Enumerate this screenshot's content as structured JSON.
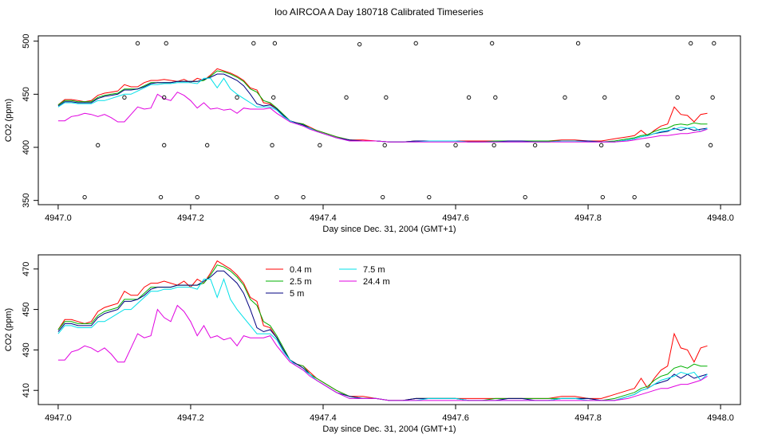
{
  "title": "loo AIRCOA A  Day 180718  Calibrated Timeseries",
  "chart_data": [
    {
      "type": "scatter",
      "xlabel": "Day since Dec. 31, 2004 (GMT+1)",
      "ylabel": "CO2 (ppm)",
      "xlim": [
        4946.97,
        4948.03
      ],
      "ylim": [
        346,
        505
      ],
      "xticks": [
        "4947.0",
        "4947.2",
        "4947.4",
        "4947.6",
        "4947.8",
        "4948.0"
      ],
      "yticks": [
        "350",
        "400",
        "450",
        "500"
      ],
      "points": {
        "x": [
          4947.04,
          4947.06,
          4947.1,
          4947.12,
          4947.155,
          4947.16,
          4947.16,
          4947.163,
          4947.21,
          4947.225,
          4947.27,
          4947.295,
          4947.323,
          4947.325,
          4947.327,
          4947.33,
          4947.37,
          4947.395,
          4947.435,
          4947.455,
          4947.49,
          4947.493,
          4947.495,
          4947.54,
          4947.56,
          4947.6,
          4947.62,
          4947.655,
          4947.658,
          4947.66,
          4947.705,
          4947.72,
          4947.765,
          4947.785,
          4947.82,
          4947.822,
          4947.825,
          4947.87,
          4947.89,
          4947.935,
          4947.955,
          4947.985,
          4947.988,
          4947.99
        ],
        "y": [
          353,
          402,
          447,
          498,
          353,
          402,
          447,
          498,
          353,
          402,
          447,
          498,
          402,
          447,
          498,
          353,
          353,
          402,
          447,
          497,
          353,
          402,
          447,
          498,
          353,
          402,
          447,
          498,
          402,
          447,
          353,
          402,
          447,
          498,
          402,
          353,
          447,
          353,
          402,
          447,
          498,
          402,
          447,
          498
        ]
      },
      "series": [
        {
          "name": "0.4 m",
          "color": "#ff0000",
          "x": [
            4947.0,
            4947.01,
            4947.02,
            4947.03,
            4947.04,
            4947.05,
            4947.06,
            4947.07,
            4947.08,
            4947.09,
            4947.1,
            4947.11,
            4947.12,
            4947.13,
            4947.14,
            4947.15,
            4947.16,
            4947.17,
            4947.18,
            4947.19,
            4947.2,
            4947.21,
            4947.22,
            4947.23,
            4947.24,
            4947.25,
            4947.26,
            4947.27,
            4947.28,
            4947.29,
            4947.3,
            4947.31,
            4947.32,
            4947.33,
            4947.34,
            4947.35,
            4947.36,
            4947.37,
            4947.38,
            4947.39,
            4947.4,
            4947.42,
            4947.44,
            4947.46,
            4947.48,
            4947.5,
            4947.52,
            4947.54,
            4947.56,
            4947.58,
            4947.6,
            4947.62,
            4947.64,
            4947.66,
            4947.68,
            4947.7,
            4947.72,
            4947.74,
            4947.76,
            4947.78,
            4947.8,
            4947.82,
            4947.84,
            4947.86,
            4947.87,
            4947.88,
            4947.89,
            4947.9,
            4947.91,
            4947.92,
            4947.93,
            4947.94,
            4947.95,
            4947.96,
            4947.97,
            4947.98
          ],
          "y": [
            440,
            445,
            445,
            444,
            443,
            444,
            449,
            451,
            452,
            453,
            459,
            457,
            457,
            461,
            463,
            463,
            464,
            463,
            462,
            464,
            461,
            465,
            463,
            468,
            474,
            472,
            470,
            467,
            463,
            456,
            454,
            442,
            441,
            436,
            430,
            425,
            423,
            422,
            419,
            416,
            414,
            410,
            407,
            407,
            406,
            405,
            405,
            406,
            406,
            406,
            406,
            406,
            406,
            406,
            406,
            406,
            406,
            406,
            407,
            407,
            406,
            406,
            408,
            410,
            411,
            416,
            411,
            416,
            420,
            422,
            438,
            431,
            430,
            424,
            431,
            432
          ]
        },
        {
          "name": "2.5 m",
          "color": "#00b000",
          "x": [
            4947.0,
            4947.01,
            4947.02,
            4947.03,
            4947.04,
            4947.05,
            4947.06,
            4947.07,
            4947.08,
            4947.09,
            4947.1,
            4947.11,
            4947.12,
            4947.13,
            4947.14,
            4947.15,
            4947.16,
            4947.17,
            4947.18,
            4947.19,
            4947.2,
            4947.21,
            4947.22,
            4947.23,
            4947.24,
            4947.25,
            4947.26,
            4947.27,
            4947.28,
            4947.29,
            4947.3,
            4947.31,
            4947.32,
            4947.33,
            4947.34,
            4947.35,
            4947.36,
            4947.37,
            4947.38,
            4947.39,
            4947.4,
            4947.42,
            4947.44,
            4947.46,
            4947.48,
            4947.5,
            4947.52,
            4947.54,
            4947.56,
            4947.58,
            4947.6,
            4947.62,
            4947.64,
            4947.66,
            4947.68,
            4947.7,
            4947.72,
            4947.74,
            4947.76,
            4947.78,
            4947.8,
            4947.82,
            4947.84,
            4947.86,
            4947.87,
            4947.88,
            4947.89,
            4947.9,
            4947.91,
            4947.92,
            4947.93,
            4947.94,
            4947.95,
            4947.96,
            4947.97,
            4947.98
          ],
          "y": [
            440,
            444,
            444,
            443,
            443,
            443,
            447,
            449,
            450,
            451,
            455,
            455,
            455,
            458,
            461,
            461,
            461,
            461,
            462,
            462,
            462,
            462,
            463,
            467,
            472,
            471,
            469,
            466,
            462,
            455,
            452,
            444,
            442,
            437,
            431,
            425,
            423,
            422,
            418,
            416,
            414,
            410,
            407,
            406,
            406,
            405,
            405,
            406,
            406,
            406,
            406,
            405,
            405,
            406,
            406,
            406,
            406,
            406,
            406,
            406,
            406,
            405,
            406,
            408,
            409,
            411,
            412,
            415,
            417,
            418,
            421,
            422,
            421,
            423,
            422,
            422
          ]
        },
        {
          "name": "5 m",
          "color": "#000080",
          "x": [
            4947.0,
            4947.01,
            4947.02,
            4947.03,
            4947.04,
            4947.05,
            4947.06,
            4947.07,
            4947.08,
            4947.09,
            4947.1,
            4947.11,
            4947.12,
            4947.13,
            4947.14,
            4947.15,
            4947.16,
            4947.17,
            4947.18,
            4947.19,
            4947.2,
            4947.21,
            4947.22,
            4947.23,
            4947.24,
            4947.25,
            4947.26,
            4947.27,
            4947.28,
            4947.29,
            4947.3,
            4947.31,
            4947.32,
            4947.33,
            4947.34,
            4947.35,
            4947.36,
            4947.37,
            4947.38,
            4947.39,
            4947.4,
            4947.42,
            4947.44,
            4947.46,
            4947.48,
            4947.5,
            4947.52,
            4947.54,
            4947.56,
            4947.58,
            4947.6,
            4947.62,
            4947.64,
            4947.66,
            4947.68,
            4947.7,
            4947.72,
            4947.74,
            4947.76,
            4947.78,
            4947.8,
            4947.82,
            4947.84,
            4947.86,
            4947.87,
            4947.88,
            4947.89,
            4947.9,
            4947.91,
            4947.92,
            4947.93,
            4947.94,
            4947.95,
            4947.96,
            4947.97,
            4947.98
          ],
          "y": [
            439,
            443,
            443,
            442,
            442,
            442,
            446,
            448,
            449,
            450,
            454,
            454,
            455,
            457,
            460,
            461,
            461,
            461,
            462,
            462,
            462,
            462,
            464,
            466,
            469,
            469,
            466,
            463,
            458,
            450,
            441,
            439,
            440,
            436,
            430,
            425,
            423,
            421,
            418,
            415,
            413,
            409,
            407,
            406,
            406,
            405,
            405,
            406,
            406,
            406,
            406,
            405,
            405,
            405,
            406,
            406,
            405,
            405,
            406,
            406,
            406,
            405,
            405,
            407,
            408,
            410,
            411,
            413,
            414,
            415,
            418,
            416,
            418,
            416,
            417,
            418
          ]
        },
        {
          "name": "7.5 m",
          "color": "#00e0e8",
          "x": [
            4947.0,
            4947.01,
            4947.02,
            4947.03,
            4947.04,
            4947.05,
            4947.06,
            4947.07,
            4947.08,
            4947.09,
            4947.1,
            4947.11,
            4947.12,
            4947.13,
            4947.14,
            4947.15,
            4947.16,
            4947.17,
            4947.18,
            4947.19,
            4947.2,
            4947.21,
            4947.22,
            4947.23,
            4947.24,
            4947.25,
            4947.26,
            4947.27,
            4947.28,
            4947.29,
            4947.3,
            4947.31,
            4947.32,
            4947.33,
            4947.34,
            4947.35,
            4947.36,
            4947.37,
            4947.38,
            4947.39,
            4947.4,
            4947.42,
            4947.44,
            4947.46,
            4947.48,
            4947.5,
            4947.52,
            4947.54,
            4947.56,
            4947.58,
            4947.6,
            4947.62,
            4947.64,
            4947.66,
            4947.68,
            4947.7,
            4947.72,
            4947.74,
            4947.76,
            4947.78,
            4947.8,
            4947.82,
            4947.84,
            4947.86,
            4947.87,
            4947.88,
            4947.89,
            4947.9,
            4947.91,
            4947.92,
            4947.93,
            4947.94,
            4947.95,
            4947.96,
            4947.97,
            4947.98
          ],
          "y": [
            438,
            442,
            442,
            441,
            441,
            441,
            444,
            444,
            446,
            448,
            450,
            450,
            453,
            456,
            459,
            459,
            460,
            460,
            461,
            461,
            461,
            460,
            465,
            465,
            456,
            465,
            455,
            450,
            446,
            442,
            438,
            438,
            438,
            435,
            429,
            425,
            422,
            420,
            418,
            415,
            413,
            409,
            406,
            406,
            406,
            405,
            405,
            405,
            406,
            406,
            406,
            405,
            405,
            405,
            405,
            405,
            405,
            405,
            406,
            406,
            405,
            405,
            405,
            407,
            408,
            410,
            411,
            413,
            415,
            416,
            417,
            419,
            418,
            419,
            415,
            418
          ]
        },
        {
          "name": "24.4 m",
          "color": "#e000e0",
          "x": [
            4947.0,
            4947.01,
            4947.02,
            4947.03,
            4947.04,
            4947.05,
            4947.06,
            4947.07,
            4947.08,
            4947.09,
            4947.1,
            4947.11,
            4947.12,
            4947.13,
            4947.14,
            4947.15,
            4947.16,
            4947.17,
            4947.18,
            4947.19,
            4947.2,
            4947.21,
            4947.22,
            4947.23,
            4947.24,
            4947.25,
            4947.26,
            4947.27,
            4947.28,
            4947.29,
            4947.3,
            4947.31,
            4947.32,
            4947.33,
            4947.34,
            4947.35,
            4947.36,
            4947.37,
            4947.38,
            4947.39,
            4947.4,
            4947.42,
            4947.44,
            4947.46,
            4947.48,
            4947.5,
            4947.52,
            4947.54,
            4947.56,
            4947.58,
            4947.6,
            4947.62,
            4947.64,
            4947.66,
            4947.68,
            4947.7,
            4947.72,
            4947.74,
            4947.76,
            4947.78,
            4947.8,
            4947.82,
            4947.84,
            4947.86,
            4947.87,
            4947.88,
            4947.89,
            4947.9,
            4947.91,
            4947.92,
            4947.93,
            4947.94,
            4947.95,
            4947.96,
            4947.97,
            4947.98
          ],
          "y": [
            425,
            425,
            429,
            430,
            432,
            431,
            429,
            431,
            428,
            424,
            424,
            431,
            438,
            436,
            437,
            450,
            446,
            444,
            452,
            449,
            444,
            437,
            442,
            436,
            437,
            435,
            436,
            432,
            437,
            436,
            436,
            436,
            437,
            432,
            428,
            424,
            422,
            420,
            417,
            415,
            413,
            409,
            406,
            406,
            406,
            405,
            405,
            405,
            405,
            405,
            405,
            405,
            405,
            405,
            405,
            405,
            405,
            405,
            405,
            405,
            405,
            405,
            405,
            406,
            407,
            408,
            409,
            410,
            411,
            411,
            412,
            413,
            413,
            414,
            415,
            417
          ]
        }
      ]
    },
    {
      "type": "line",
      "xlabel": "Day since Dec. 31, 2004 (GMT+1)",
      "ylabel": "CO2 (ppm)",
      "xlim": [
        4946.97,
        4948.03
      ],
      "ylim": [
        403,
        477
      ],
      "xticks": [
        "4947.0",
        "4947.2",
        "4947.4",
        "4947.6",
        "4947.8",
        "4948.0"
      ],
      "yticks": [
        "410",
        "430",
        "450",
        "470"
      ],
      "legend": "top-left",
      "legend_entries": [
        "0.4 m",
        "2.5 m",
        "5 m",
        "7.5 m",
        "24.4 m"
      ]
    }
  ]
}
